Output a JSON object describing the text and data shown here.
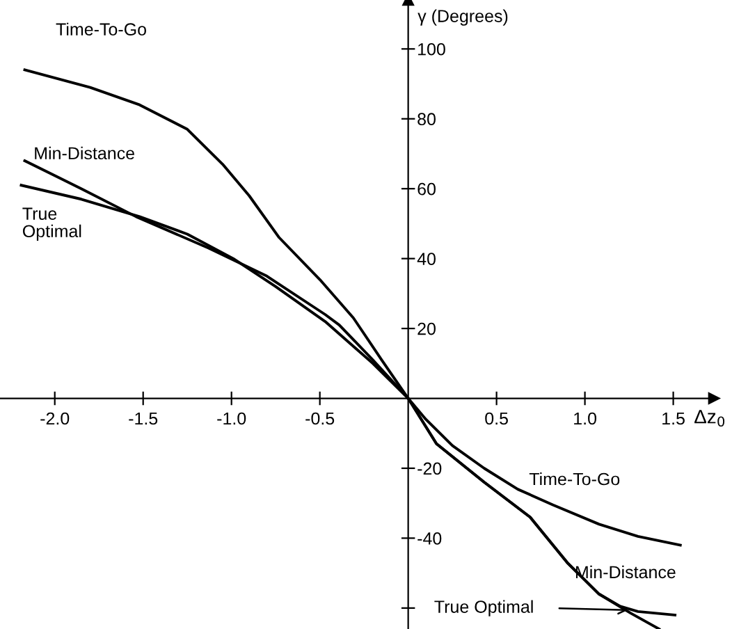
{
  "chart_data": {
    "type": "line",
    "xlabel": "Δz$_{0}$",
    "ylabel": "γ (Degrees)",
    "xlim": [
      -2.31,
      1.73
    ],
    "ylim": [
      -66,
      114
    ],
    "xticks": [
      {
        "value": -2.0,
        "label": "-2.0"
      },
      {
        "value": -1.5,
        "label": "-1.5"
      },
      {
        "value": -1.0,
        "label": "-1.0"
      },
      {
        "value": -0.5,
        "label": "-0.5"
      },
      {
        "value": 0.5,
        "label": "0.5"
      },
      {
        "value": 1.0,
        "label": "1.0"
      },
      {
        "value": 1.5,
        "label": "1.5"
      }
    ],
    "yticks": [
      {
        "value": -60,
        "label": null
      },
      -40,
      -20,
      20,
      40,
      60,
      80,
      100
    ],
    "grid": false,
    "marker": "none",
    "line_style": "solid",
    "series": [
      {
        "name": "Time-To-Go",
        "color": "#000000",
        "x": [
          -2.17,
          -1.8,
          -1.52,
          -1.25,
          -1.05,
          -0.9,
          -0.73,
          -0.5,
          -0.31,
          -0.15,
          0,
          0.1,
          0.25,
          0.43,
          0.62,
          0.82,
          1.08,
          1.3,
          1.54
        ],
        "values": [
          94,
          89,
          84,
          77,
          67,
          58,
          46,
          34,
          23,
          11,
          0,
          -6,
          -13.5,
          -20,
          -26,
          -30.5,
          -36,
          -39.5,
          -42
        ]
      },
      {
        "name": "Min-Distance",
        "color": "#000000",
        "x": [
          -2.17,
          -1.85,
          -1.54,
          -1.13,
          -0.8,
          -0.47,
          -0.39,
          -0.2,
          0,
          0.16,
          0.43,
          0.69,
          0.9,
          1.08,
          1.2,
          1.3,
          1.51
        ],
        "values": [
          68,
          60,
          52,
          43,
          35,
          24,
          21,
          11,
          0,
          -13,
          -24,
          -34,
          -47,
          -56,
          -59.5,
          -61,
          -62
        ]
      },
      {
        "name": "True Optimal",
        "color": "#000000",
        "x": [
          -2.19,
          -1.85,
          -1.52,
          -1.25,
          -0.99,
          -0.75,
          -0.47,
          -0.2,
          0,
          0.16,
          0.43,
          0.69,
          0.9,
          1.08,
          1.26,
          1.42
        ],
        "values": [
          61,
          57,
          52,
          47,
          40,
          32,
          22,
          10,
          0,
          -13,
          -24,
          -34,
          -47,
          -56,
          -61.5,
          -66
        ]
      }
    ]
  }
}
